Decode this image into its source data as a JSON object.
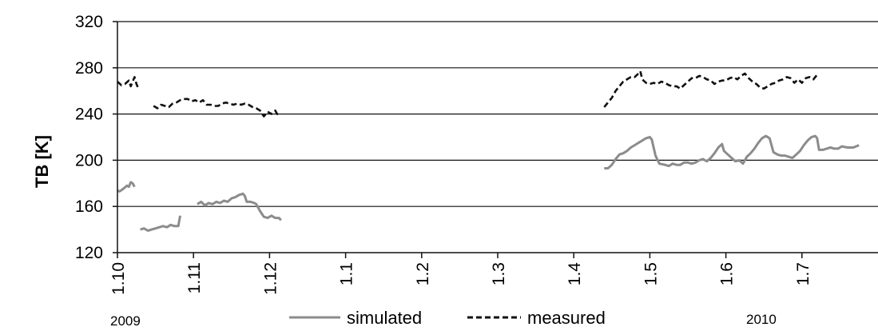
{
  "chart_data": {
    "type": "line",
    "ylabel": "TB [K]",
    "ylim": [
      120,
      320
    ],
    "yticks": [
      120,
      160,
      200,
      240,
      280,
      320
    ],
    "categories": [
      "1.10",
      "1.11",
      "1.12",
      "1.1",
      "1.2",
      "1.3",
      "1.4",
      "1.5",
      "1.6",
      "1.7"
    ],
    "year_labels": [
      "2009",
      "2010"
    ],
    "grid": "horizontal",
    "legend_position": "bottom",
    "colors": {
      "simulated": "#8c8c8c",
      "measured": "#111111"
    },
    "series": [
      {
        "name": "simulated",
        "style": "solid",
        "segments": [
          [
            [
              0.0,
              174
            ],
            [
              0.05,
              173
            ],
            [
              0.1,
              174
            ],
            [
              0.18,
              176
            ],
            [
              0.25,
              178
            ],
            [
              0.3,
              177
            ],
            [
              0.35,
              181
            ],
            [
              0.4,
              180
            ],
            [
              0.45,
              177
            ]
          ],
          [
            [
              0.6,
              140
            ],
            [
              0.7,
              141
            ],
            [
              0.8,
              139
            ],
            [
              0.9,
              140
            ],
            [
              1.0,
              141
            ],
            [
              1.1,
              142
            ],
            [
              1.2,
              143
            ],
            [
              1.3,
              142
            ],
            [
              1.4,
              144
            ],
            [
              1.5,
              143
            ],
            [
              1.6,
              143
            ],
            [
              1.65,
              152
            ]
          ],
          [
            [
              2.1,
              162
            ],
            [
              2.2,
              164
            ],
            [
              2.3,
              161
            ],
            [
              2.4,
              163
            ],
            [
              2.5,
              162
            ],
            [
              2.6,
              164
            ],
            [
              2.7,
              163
            ],
            [
              2.8,
              165
            ],
            [
              2.9,
              164
            ],
            [
              3.0,
              167
            ],
            [
              3.1,
              168
            ],
            [
              3.2,
              170
            ],
            [
              3.3,
              171
            ],
            [
              3.35,
              169
            ],
            [
              3.4,
              164
            ],
            [
              3.5,
              164
            ],
            [
              3.6,
              163
            ],
            [
              3.65,
              162
            ],
            [
              3.75,
              156
            ],
            [
              3.85,
              151
            ],
            [
              3.95,
              150
            ],
            [
              4.05,
              152
            ],
            [
              4.15,
              150
            ],
            [
              4.25,
              150
            ],
            [
              4.3,
              148
            ]
          ],
          [
            [
              12.8,
              193
            ],
            [
              12.9,
              193
            ],
            [
              13.0,
              196
            ],
            [
              13.1,
              201
            ],
            [
              13.2,
              205
            ],
            [
              13.3,
              206
            ],
            [
              13.4,
              208
            ],
            [
              13.5,
              211
            ],
            [
              13.6,
              213
            ],
            [
              13.7,
              215
            ],
            [
              13.8,
              217
            ],
            [
              13.9,
              219
            ],
            [
              14.0,
              220
            ],
            [
              14.05,
              218
            ],
            [
              14.15,
              204
            ],
            [
              14.25,
              197
            ],
            [
              14.4,
              196
            ],
            [
              14.5,
              195
            ],
            [
              14.6,
              197
            ],
            [
              14.7,
              196
            ],
            [
              14.8,
              196
            ],
            [
              14.9,
              198
            ],
            [
              15.0,
              198
            ],
            [
              15.1,
              197
            ],
            [
              15.2,
              198
            ],
            [
              15.3,
              200
            ],
            [
              15.4,
              201
            ],
            [
              15.5,
              199
            ],
            [
              15.6,
              202
            ],
            [
              15.7,
              206
            ],
            [
              15.8,
              211
            ],
            [
              15.9,
              214
            ],
            [
              15.95,
              208
            ],
            [
              16.05,
              205
            ],
            [
              16.15,
              202
            ],
            [
              16.25,
              199
            ],
            [
              16.35,
              200
            ],
            [
              16.45,
              197
            ],
            [
              16.55,
              203
            ],
            [
              16.65,
              206
            ],
            [
              16.75,
              210
            ],
            [
              16.85,
              215
            ],
            [
              16.95,
              219
            ],
            [
              17.05,
              221
            ],
            [
              17.15,
              219
            ],
            [
              17.25,
              207
            ],
            [
              17.35,
              205
            ],
            [
              17.45,
              204
            ],
            [
              17.55,
              204
            ],
            [
              17.65,
              203
            ],
            [
              17.75,
              202
            ],
            [
              17.85,
              205
            ],
            [
              17.95,
              208
            ],
            [
              18.05,
              213
            ],
            [
              18.15,
              217
            ],
            [
              18.25,
              220
            ],
            [
              18.35,
              221
            ],
            [
              18.4,
              219
            ],
            [
              18.45,
              209
            ],
            [
              18.55,
              209
            ],
            [
              18.65,
              210
            ],
            [
              18.75,
              211
            ],
            [
              18.85,
              210
            ],
            [
              18.95,
              210
            ],
            [
              19.05,
              212
            ],
            [
              19.2,
              211
            ],
            [
              19.35,
              211
            ],
            [
              19.5,
              213
            ]
          ]
        ]
      },
      {
        "name": "measured",
        "style": "dashed",
        "segments": [
          [
            [
              0.0,
              268
            ],
            [
              0.1,
              265
            ],
            [
              0.2,
              266
            ],
            [
              0.3,
              269
            ],
            [
              0.35,
              264
            ],
            [
              0.45,
              272
            ],
            [
              0.5,
              266
            ],
            [
              0.55,
              262
            ]
          ],
          [
            [
              0.95,
              247
            ],
            [
              1.05,
              245
            ],
            [
              1.15,
              248
            ],
            [
              1.25,
              247
            ],
            [
              1.35,
              246
            ],
            [
              1.45,
              249
            ],
            [
              1.55,
              250
            ],
            [
              1.65,
              252
            ],
            [
              1.75,
              253
            ],
            [
              1.85,
              253
            ],
            [
              1.95,
              251
            ],
            [
              2.05,
              252
            ],
            [
              2.15,
              250
            ],
            [
              2.25,
              252
            ],
            [
              2.35,
              248
            ],
            [
              2.45,
              248
            ],
            [
              2.55,
              247
            ],
            [
              2.65,
              247
            ],
            [
              2.75,
              249
            ],
            [
              2.85,
              250
            ],
            [
              2.95,
              249
            ],
            [
              3.05,
              248
            ],
            [
              3.15,
              249
            ],
            [
              3.25,
              248
            ],
            [
              3.35,
              249
            ],
            [
              3.45,
              248
            ],
            [
              3.55,
              246
            ],
            [
              3.65,
              245
            ],
            [
              3.75,
              243
            ],
            [
              3.85,
              238
            ],
            [
              3.95,
              242
            ],
            [
              4.05,
              240
            ],
            [
              4.15,
              243
            ],
            [
              4.2,
              240
            ],
            [
              4.3,
              239
            ]
          ],
          [
            [
              12.8,
              246
            ],
            [
              12.9,
              250
            ],
            [
              13.0,
              254
            ],
            [
              13.1,
              260
            ],
            [
              13.2,
              264
            ],
            [
              13.3,
              268
            ],
            [
              13.4,
              270
            ],
            [
              13.5,
              272
            ],
            [
              13.6,
              272
            ],
            [
              13.7,
              275
            ],
            [
              13.75,
              277
            ],
            [
              13.8,
              270
            ],
            [
              13.9,
              267
            ],
            [
              14.0,
              266
            ],
            [
              14.1,
              267
            ],
            [
              14.2,
              266
            ],
            [
              14.3,
              268
            ],
            [
              14.4,
              267
            ],
            [
              14.5,
              265
            ],
            [
              14.6,
              264
            ],
            [
              14.7,
              264
            ],
            [
              14.8,
              262
            ],
            [
              14.9,
              265
            ],
            [
              15.0,
              268
            ],
            [
              15.1,
              271
            ],
            [
              15.2,
              271
            ],
            [
              15.3,
              273
            ],
            [
              15.4,
              272
            ],
            [
              15.5,
              270
            ],
            [
              15.6,
              269
            ],
            [
              15.7,
              266
            ],
            [
              15.8,
              268
            ],
            [
              15.9,
              269
            ],
            [
              16.0,
              269
            ],
            [
              16.1,
              271
            ],
            [
              16.2,
              272
            ],
            [
              16.3,
              270
            ],
            [
              16.4,
              273
            ],
            [
              16.5,
              275
            ],
            [
              16.6,
              271
            ],
            [
              16.7,
              268
            ],
            [
              16.8,
              266
            ],
            [
              16.9,
              263
            ],
            [
              17.0,
              262
            ],
            [
              17.1,
              264
            ],
            [
              17.2,
              266
            ],
            [
              17.3,
              267
            ],
            [
              17.4,
              269
            ],
            [
              17.5,
              270
            ],
            [
              17.6,
              272
            ],
            [
              17.7,
              271
            ],
            [
              17.8,
              267
            ],
            [
              17.9,
              270
            ],
            [
              18.0,
              267
            ],
            [
              18.1,
              271
            ],
            [
              18.2,
              272
            ],
            [
              18.3,
              270
            ],
            [
              18.4,
              274
            ]
          ]
        ]
      }
    ]
  }
}
